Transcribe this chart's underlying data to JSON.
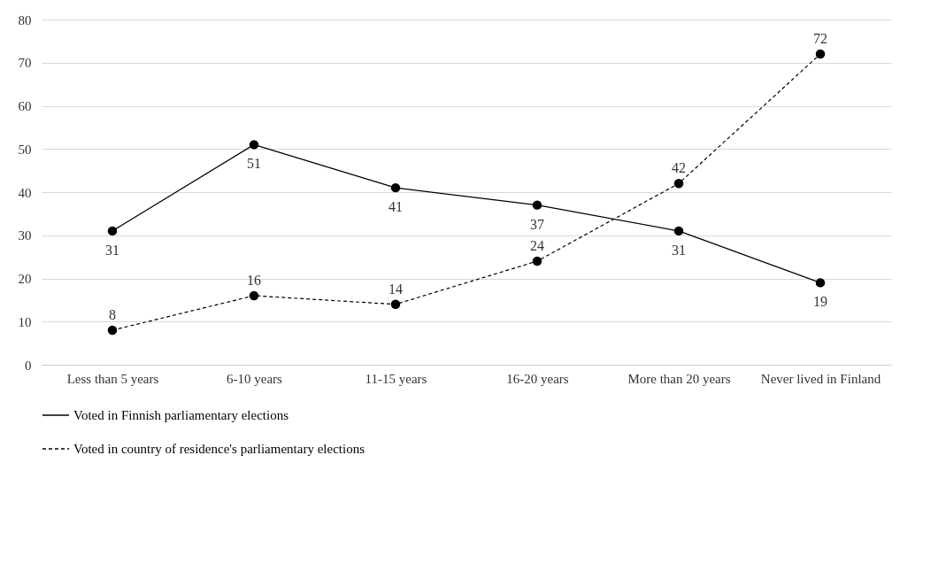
{
  "chart_data": {
    "type": "line",
    "categories": [
      "Less than 5 years",
      "6-10 years",
      "11-15 years",
      "16-20 years",
      "More than 20 years",
      "Never lived in Finland"
    ],
    "series": [
      {
        "name": "Voted in Finnish  parliamentary elections",
        "color": "#000000",
        "line_style": "solid",
        "values": [
          31,
          51,
          41,
          37,
          31,
          19
        ]
      },
      {
        "name": "Voted in country of residence's parliamentary elections",
        "color": "#000000",
        "line_style": "dashed",
        "values": [
          8,
          16,
          14,
          24,
          42,
          72
        ]
      }
    ],
    "ylim": [
      0,
      80
    ],
    "yticks": [
      0,
      10,
      20,
      30,
      40,
      50,
      60,
      70,
      80
    ],
    "grid": "y",
    "legend": "bottom",
    "marker": "circle",
    "data_labels": true
  }
}
